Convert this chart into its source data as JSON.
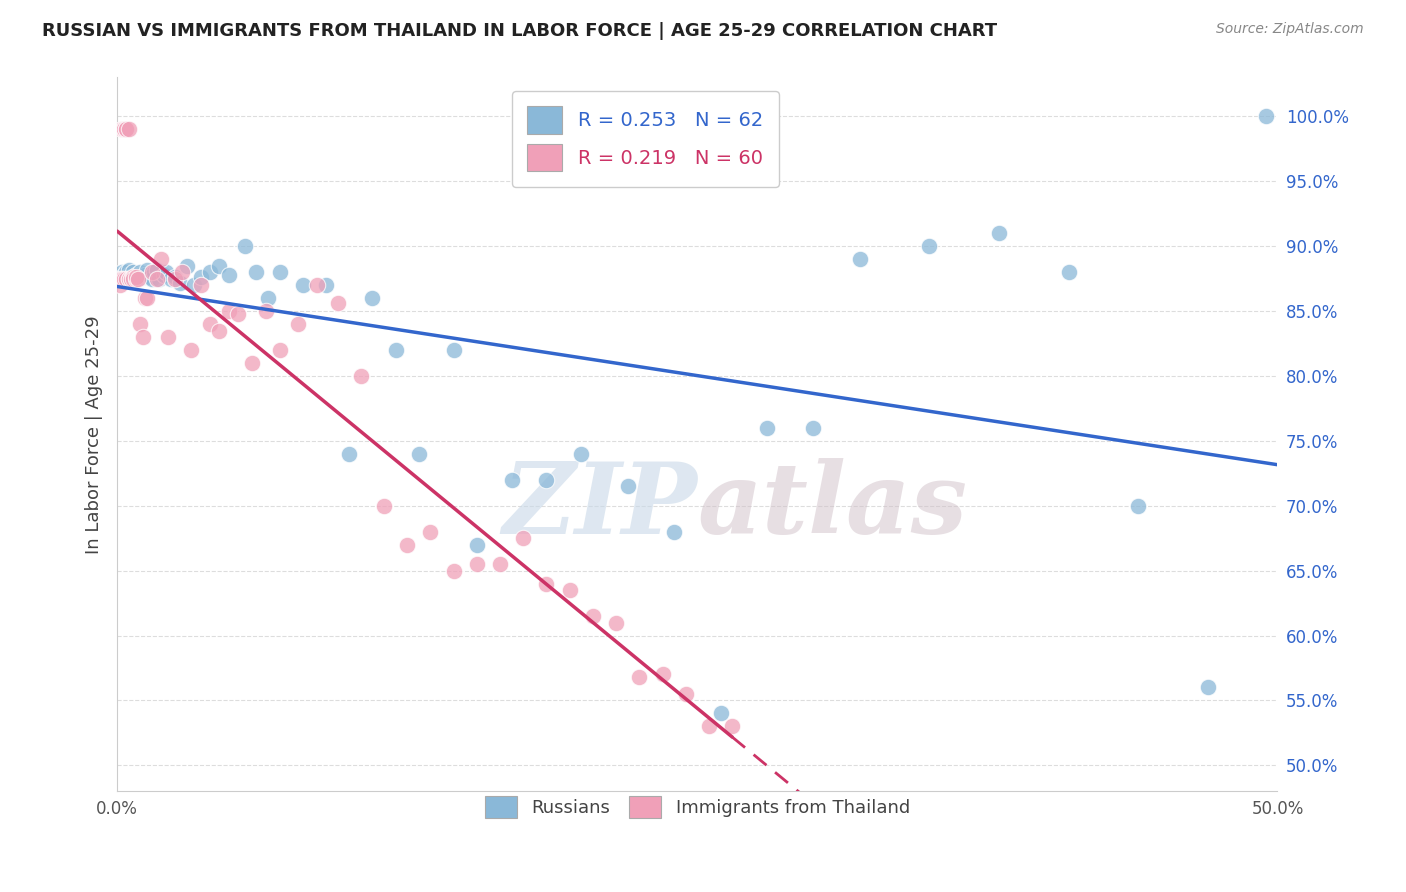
{
  "title": "RUSSIAN VS IMMIGRANTS FROM THAILAND IN LABOR FORCE | AGE 25-29 CORRELATION CHART",
  "source": "Source: ZipAtlas.com",
  "ylabel": "In Labor Force | Age 25-29",
  "xlim": [
    0.0,
    0.5
  ],
  "ylim": [
    0.48,
    1.03
  ],
  "xticks": [
    0.0,
    0.05,
    0.1,
    0.15,
    0.2,
    0.25,
    0.3,
    0.35,
    0.4,
    0.45,
    0.5
  ],
  "xticklabels": [
    "0.0%",
    "",
    "",
    "",
    "",
    "",
    "",
    "",
    "",
    "",
    "50.0%"
  ],
  "ytick_positions": [
    0.5,
    0.55,
    0.6,
    0.65,
    0.7,
    0.75,
    0.8,
    0.85,
    0.9,
    0.95,
    1.0
  ],
  "ytick_labels": [
    "50.0%",
    "55.0%",
    "60.0%",
    "65.0%",
    "70.0%",
    "75.0%",
    "80.0%",
    "85.0%",
    "90.0%",
    "95.0%",
    "100.0%"
  ],
  "blue_color": "#8AB8D8",
  "pink_color": "#F0A0B8",
  "blue_line_color": "#3366CC",
  "pink_line_color": "#CC3366",
  "R_blue": 0.253,
  "N_blue": 62,
  "R_pink": 0.219,
  "N_pink": 60,
  "blue_x": [
    0.001,
    0.002,
    0.002,
    0.003,
    0.003,
    0.004,
    0.004,
    0.005,
    0.005,
    0.006,
    0.006,
    0.007,
    0.008,
    0.008,
    0.009,
    0.01,
    0.011,
    0.012,
    0.013,
    0.014,
    0.015,
    0.016,
    0.017,
    0.018,
    0.02,
    0.021,
    0.023,
    0.025,
    0.027,
    0.03,
    0.033,
    0.036,
    0.04,
    0.044,
    0.048,
    0.055,
    0.06,
    0.065,
    0.07,
    0.08,
    0.09,
    0.1,
    0.11,
    0.12,
    0.13,
    0.145,
    0.155,
    0.17,
    0.185,
    0.2,
    0.22,
    0.24,
    0.26,
    0.28,
    0.3,
    0.32,
    0.35,
    0.38,
    0.41,
    0.44,
    0.47,
    0.495
  ],
  "blue_y": [
    0.875,
    0.875,
    0.88,
    0.875,
    0.878,
    0.876,
    0.88,
    0.878,
    0.882,
    0.876,
    0.875,
    0.88,
    0.878,
    0.875,
    0.876,
    0.88,
    0.876,
    0.878,
    0.882,
    0.876,
    0.875,
    0.88,
    0.882,
    0.875,
    0.878,
    0.88,
    0.875,
    0.876,
    0.872,
    0.885,
    0.87,
    0.876,
    0.88,
    0.885,
    0.878,
    0.9,
    0.88,
    0.86,
    0.88,
    0.87,
    0.87,
    0.74,
    0.86,
    0.82,
    0.74,
    0.82,
    0.67,
    0.72,
    0.72,
    0.74,
    0.715,
    0.68,
    0.54,
    0.76,
    0.76,
    0.89,
    0.9,
    0.91,
    0.88,
    0.7,
    0.56,
    1.0
  ],
  "pink_x": [
    0.001,
    0.001,
    0.002,
    0.002,
    0.002,
    0.003,
    0.003,
    0.003,
    0.004,
    0.004,
    0.004,
    0.005,
    0.005,
    0.005,
    0.006,
    0.006,
    0.007,
    0.007,
    0.008,
    0.008,
    0.009,
    0.01,
    0.011,
    0.012,
    0.013,
    0.015,
    0.017,
    0.019,
    0.022,
    0.025,
    0.028,
    0.032,
    0.036,
    0.04,
    0.044,
    0.048,
    0.052,
    0.058,
    0.064,
    0.07,
    0.078,
    0.086,
    0.095,
    0.105,
    0.115,
    0.125,
    0.135,
    0.145,
    0.155,
    0.165,
    0.175,
    0.185,
    0.195,
    0.205,
    0.215,
    0.225,
    0.235,
    0.245,
    0.255,
    0.265
  ],
  "pink_y": [
    0.875,
    0.87,
    0.99,
    0.99,
    0.875,
    0.99,
    0.99,
    0.875,
    0.99,
    0.99,
    0.875,
    0.99,
    0.875,
    0.875,
    0.875,
    0.875,
    0.876,
    0.875,
    0.875,
    0.876,
    0.875,
    0.84,
    0.83,
    0.86,
    0.86,
    0.88,
    0.875,
    0.89,
    0.83,
    0.875,
    0.88,
    0.82,
    0.87,
    0.84,
    0.835,
    0.85,
    0.848,
    0.81,
    0.85,
    0.82,
    0.84,
    0.87,
    0.856,
    0.8,
    0.7,
    0.67,
    0.68,
    0.65,
    0.655,
    0.655,
    0.675,
    0.64,
    0.635,
    0.615,
    0.61,
    0.568,
    0.57,
    0.555,
    0.53,
    0.53
  ],
  "watermark_zip": "ZIP",
  "watermark_atlas": "atlas",
  "background_color": "#FFFFFF",
  "grid_color": "#DDDDDD"
}
